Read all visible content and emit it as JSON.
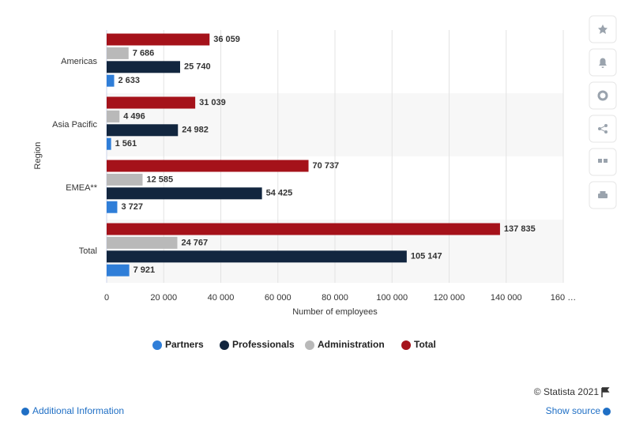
{
  "chart_data": {
    "type": "bar",
    "orientation": "horizontal",
    "y_label": "Region",
    "x_label": "Number of employees",
    "categories": [
      "Americas",
      "Asia Pacific",
      "EMEA**",
      "Total"
    ],
    "series": [
      {
        "name": "Partners",
        "color": "#2f7ed8",
        "values": [
          2633,
          1561,
          3727,
          7921
        ],
        "value_labels": [
          "2 633",
          "1 561",
          "3 727",
          "7 921"
        ]
      },
      {
        "name": "Professionals",
        "color": "#12263f",
        "values": [
          25740,
          24982,
          54425,
          105147
        ],
        "value_labels": [
          "25 740",
          "24 982",
          "54 425",
          "105 147"
        ]
      },
      {
        "name": "Administration",
        "color": "#b9b9b9",
        "values": [
          7686,
          4496,
          12585,
          24767
        ],
        "value_labels": [
          "7 686",
          "4 496",
          "12 585",
          "24 767"
        ]
      },
      {
        "name": "Total",
        "color": "#a5121a",
        "values": [
          36059,
          31039,
          70737,
          137835
        ],
        "value_labels": [
          "36 059",
          "31 039",
          "70 737",
          "137 835"
        ]
      }
    ],
    "xlim": [
      0,
      160000
    ],
    "xticks": [
      0,
      {
        "value": 20000,
        "label": "20 000"
      },
      {
        "value": 40000,
        "label": "40 000"
      },
      {
        "value": 60000,
        "label": "60 000"
      },
      {
        "value": 80000,
        "label": "80 000"
      },
      {
        "value": 100000,
        "label": "100 000"
      },
      {
        "value": 120000,
        "label": "120 000"
      },
      {
        "value": 140000,
        "label": "140 000"
      },
      {
        "value": 160000,
        "label": "160 …"
      }
    ],
    "grid": true,
    "legend": "bottom"
  },
  "footer": {
    "credit": "© Statista 2021",
    "additional_info": "Additional Information",
    "show_source": "Show source"
  }
}
